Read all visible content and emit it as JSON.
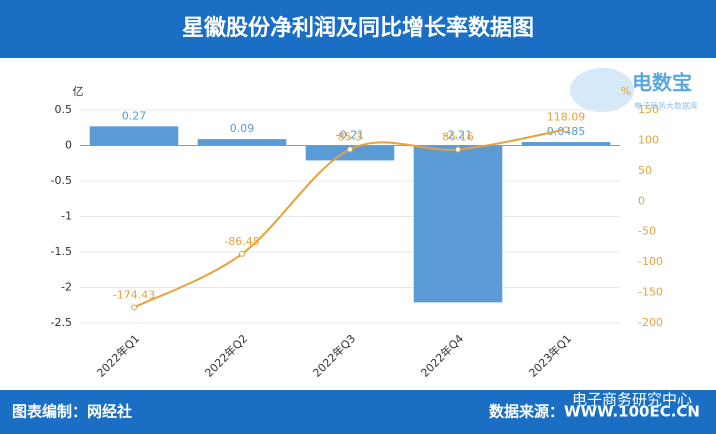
{
  "chart_data": {
    "type": "bar-line",
    "title": "星徽股份净利润及同比增长率数据图",
    "categories": [
      "2022年Q1",
      "2022年Q2",
      "2022年Q3",
      "2022年Q4",
      "2023年Q1"
    ],
    "series": [
      {
        "name": "净利润",
        "type": "bar",
        "color": "#5b9bd5",
        "values": [
          0.27,
          0.09,
          -0.21,
          -2.21,
          0.0485
        ]
      },
      {
        "name": "同比增长率",
        "type": "line",
        "axis": "y2",
        "color": "#e8a23a",
        "values": [
          -174.43,
          -86.45,
          85.3,
          85.16,
          118.09
        ]
      }
    ],
    "y_unit": "亿",
    "y2_unit": "%",
    "ylim": [
      -2.5,
      0.5
    ],
    "yticks": [
      0.5,
      0,
      -0.5,
      -1,
      -1.5,
      -2,
      -2.5
    ],
    "y2lim": [
      -200,
      150
    ],
    "y2ticks": [
      150,
      100,
      50,
      0,
      -50,
      -100,
      -150,
      -200
    ],
    "grid": true,
    "footer_left": "图表编制：网经社",
    "footer_right": "数据来源：WWW.100EC.CN",
    "watermark": "电子商务研究中心",
    "logo": "电数宝",
    "logo_sub": "电子商务大数据库"
  }
}
